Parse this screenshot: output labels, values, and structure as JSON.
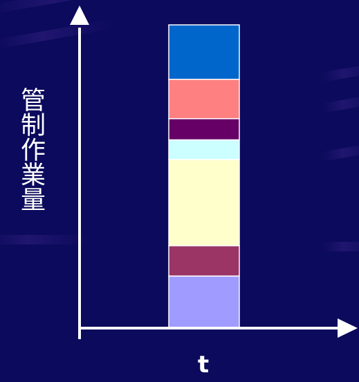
{
  "chart_data": {
    "type": "bar",
    "stacked": true,
    "xlabel": "t",
    "ylabel": "管制作業量",
    "categories": [
      ""
    ],
    "ylim": [
      0,
      100
    ],
    "grid": false,
    "legend": "none",
    "series": [
      {
        "values": [
          17
        ],
        "color": "#a09bff"
      },
      {
        "values": [
          10
        ],
        "color": "#9a3566"
      },
      {
        "values": [
          28.5
        ],
        "color": "#ffffcc"
      },
      {
        "values": [
          6.5
        ],
        "color": "#ccffff"
      },
      {
        "values": [
          7
        ],
        "color": "#660066"
      },
      {
        "values": [
          13
        ],
        "color": "#ff8080"
      },
      {
        "values": [
          18
        ],
        "color": "#0066cc"
      }
    ],
    "axis_color": "#ffffff",
    "background_color": "#0b0a5c"
  }
}
